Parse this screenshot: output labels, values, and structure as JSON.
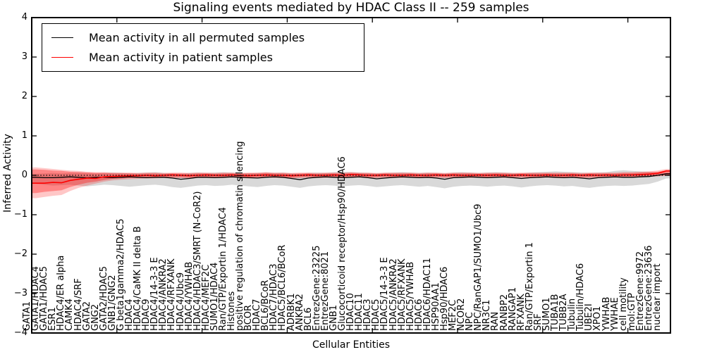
{
  "title": "Signaling events mediated by HDAC Class II -- 259 samples",
  "axes": {
    "y_label": "Inferred Activity",
    "x_label": "Cellular Entities",
    "y_ticks": [
      "4",
      "3",
      "2",
      "1",
      "0",
      "−1",
      "−2",
      "−3",
      "−4"
    ]
  },
  "chart_data": {
    "type": "line",
    "title": "Signaling events mediated by HDAC Class II -- 259 samples",
    "xlabel": "Cellular Entities",
    "ylabel": "Inferred Activity",
    "ylim": [
      -4,
      4
    ],
    "grid": false,
    "legend_position": "upper left",
    "zero_line": {
      "style": "dotted",
      "color": "#000000",
      "y": 0
    },
    "categories": [
      "GATA1",
      "GATA1/HDAC4",
      "GATA1/HDAC5",
      "ESR1",
      "HDAC4/ER alpha",
      "CAMK4",
      "HDAC4/SRF",
      "GATA2",
      "GNG2",
      "GATA2/HDAC5",
      "GNB1/GNG2",
      "G beta1gamma2/HDAC5",
      "HDAC4",
      "HDAC4/CaMK II delta B",
      "HDAC9",
      "HDAC4/14-3-3 E",
      "HDAC4/ANKRA2",
      "HDAC4/RFXANK",
      "HDAC4/Ubc9",
      "HDAC4/YWHAB",
      "HDAC4/HDAC3/SMRT (N-CoR2)",
      "HDAC4/MEF2C",
      "SUMO1/HDAC4",
      "Ran/GTP/Exportin 1/HDAC4",
      "Histones",
      "positive regulation of chromatin silencing",
      "BCOR",
      "HDAC7",
      "BCL6/BCoR",
      "HDAC7/HDAC3",
      "HDAC5/BCL6/BCoR",
      "ADRBK1",
      "ANKRA2",
      "BCL6",
      "EntrezGene:23225",
      "EntrezGene:8021",
      "GNB1",
      "Glucocorticoid receptor/Hsp90/HDAC6",
      "HDAC10",
      "HDAC11",
      "HDAC3",
      "HDAC5",
      "HDAC5/14-3-3 E",
      "HDAC5/ANKRA2",
      "HDAC5/RFXANK",
      "HDAC5/YWHAB",
      "HDAC6",
      "HDAC6/HDAC11",
      "HSP90AA1",
      "Hsp90/HDAC6",
      "MEF2C",
      "NCOR2",
      "NPC",
      "NPC/RanGAP1/SUMO1/Ubc9",
      "NR3C1",
      "RAN",
      "RANBP2",
      "RANGAP1",
      "RFXANK",
      "Ran/GTP/Exportin 1",
      "SRF",
      "SUMO1",
      "TUBA1B",
      "TUBB2A",
      "Tubulin",
      "Tubulin/HDAC6",
      "UBE2I",
      "XPO1",
      "YWHAB",
      "YWHAE",
      "cell motility",
      "mol:GTP",
      "EntrezGene:9972",
      "EntrezGene:23636",
      "nuclear import"
    ],
    "series": [
      {
        "name": "Mean activity in all permuted samples",
        "color": "#000000",
        "values": [
          -0.05,
          -0.06,
          -0.06,
          -0.05,
          -0.04,
          -0.05,
          -0.06,
          -0.05,
          -0.05,
          -0.06,
          -0.05,
          -0.04,
          -0.05,
          -0.06,
          -0.05,
          -0.05,
          -0.07,
          -0.1,
          -0.08,
          -0.05,
          -0.05,
          -0.06,
          -0.05,
          -0.04,
          -0.05,
          -0.06,
          -0.07,
          -0.05,
          -0.04,
          -0.05,
          -0.08,
          -0.11,
          -0.07,
          -0.05,
          -0.04,
          -0.05,
          -0.06,
          -0.05,
          -0.04,
          -0.06,
          -0.09,
          -0.07,
          -0.05,
          -0.04,
          -0.05,
          -0.06,
          -0.05,
          -0.07,
          -0.1,
          -0.06,
          -0.05,
          -0.04,
          -0.05,
          -0.06,
          -0.05,
          -0.04,
          -0.06,
          -0.08,
          -0.06,
          -0.05,
          -0.04,
          -0.05,
          -0.06,
          -0.05,
          -0.07,
          -0.09,
          -0.06,
          -0.05,
          -0.04,
          -0.05,
          -0.05,
          -0.04,
          -0.03,
          0.0,
          0.04
        ]
      },
      {
        "name": "Mean activity in patient samples",
        "color": "#ff0000",
        "values": [
          -0.2,
          -0.2,
          -0.18,
          -0.19,
          -0.13,
          -0.1,
          -0.07,
          -0.08,
          -0.04,
          -0.03,
          -0.02,
          -0.01,
          -0.01,
          0.0,
          -0.01,
          0.0,
          0.01,
          0.0,
          -0.01,
          0.0,
          0.01,
          0.0,
          0.0,
          0.01,
          0.0,
          -0.01,
          0.0,
          0.01,
          0.0,
          0.0,
          -0.01,
          0.0,
          0.01,
          0.0,
          0.0,
          0.01,
          0.0,
          0.02,
          0.01,
          0.0,
          0.0,
          0.01,
          0.0,
          0.0,
          0.01,
          0.0,
          0.0,
          0.01,
          0.0,
          0.01,
          0.0,
          0.0,
          0.01,
          0.0,
          0.01,
          0.0,
          0.0,
          0.01,
          0.0,
          0.0,
          0.01,
          0.0,
          0.0,
          0.01,
          0.0,
          0.01,
          0.0,
          0.01,
          0.0,
          0.01,
          0.01,
          0.02,
          0.03,
          0.05,
          0.11
        ]
      }
    ],
    "bands": [
      {
        "name": "permuted-samples-range",
        "color": "rgba(0,0,0,0.15)",
        "upper": [
          0.04,
          0.05,
          0.06,
          0.05,
          0.06,
          0.07,
          0.06,
          0.05,
          0.06,
          0.07,
          0.06,
          0.05,
          0.06,
          0.07,
          0.08,
          0.06,
          0.05,
          0.04,
          0.06,
          0.07,
          0.06,
          0.07,
          0.08,
          0.07,
          0.06,
          0.05,
          0.06,
          0.07,
          0.06,
          0.07,
          0.05,
          0.04,
          0.06,
          0.07,
          0.06,
          0.08,
          0.09,
          0.08,
          0.07,
          0.06,
          0.05,
          0.06,
          0.07,
          0.08,
          0.07,
          0.06,
          0.07,
          0.06,
          0.05,
          0.07,
          0.08,
          0.07,
          0.06,
          0.07,
          0.08,
          0.07,
          0.06,
          0.05,
          0.07,
          0.08,
          0.09,
          0.1,
          0.09,
          0.08,
          0.07,
          0.06,
          0.07,
          0.08,
          0.11,
          0.13,
          0.11,
          0.1,
          0.09,
          0.07,
          0.06
        ],
        "lower": [
          -0.22,
          -0.24,
          -0.26,
          -0.25,
          -0.24,
          -0.26,
          -0.28,
          -0.26,
          -0.24,
          -0.25,
          -0.27,
          -0.29,
          -0.27,
          -0.25,
          -0.24,
          -0.26,
          -0.3,
          -0.32,
          -0.29,
          -0.26,
          -0.25,
          -0.27,
          -0.26,
          -0.24,
          -0.26,
          -0.28,
          -0.3,
          -0.27,
          -0.25,
          -0.26,
          -0.29,
          -0.32,
          -0.28,
          -0.26,
          -0.25,
          -0.26,
          -0.28,
          -0.26,
          -0.25,
          -0.27,
          -0.3,
          -0.28,
          -0.26,
          -0.25,
          -0.27,
          -0.29,
          -0.27,
          -0.3,
          -0.33,
          -0.29,
          -0.27,
          -0.26,
          -0.27,
          -0.29,
          -0.27,
          -0.26,
          -0.28,
          -0.31,
          -0.28,
          -0.26,
          -0.25,
          -0.26,
          -0.28,
          -0.27,
          -0.3,
          -0.32,
          -0.29,
          -0.27,
          -0.26,
          -0.27,
          -0.26,
          -0.24,
          -0.22,
          -0.16,
          -0.08
        ]
      },
      {
        "name": "patient-samples-range-outer",
        "color": "rgba(255,0,0,0.22)",
        "upper": [
          0.2,
          0.18,
          0.16,
          0.14,
          0.12,
          0.11,
          0.09,
          0.08,
          0.08,
          0.07,
          0.07,
          0.07,
          0.06,
          0.07,
          0.07,
          0.06,
          0.07,
          0.07,
          0.06,
          0.07,
          0.07,
          0.06,
          0.07,
          0.07,
          0.06,
          0.07,
          0.07,
          0.08,
          0.07,
          0.07,
          0.06,
          0.07,
          0.07,
          0.06,
          0.07,
          0.07,
          0.07,
          0.08,
          0.07,
          0.07,
          0.06,
          0.07,
          0.07,
          0.07,
          0.07,
          0.06,
          0.07,
          0.07,
          0.06,
          0.07,
          0.07,
          0.07,
          0.06,
          0.07,
          0.07,
          0.07,
          0.06,
          0.07,
          0.07,
          0.07,
          0.07,
          0.07,
          0.07,
          0.07,
          0.06,
          0.07,
          0.07,
          0.07,
          0.07,
          0.08,
          0.08,
          0.09,
          0.1,
          0.12,
          0.16
        ],
        "lower": [
          -0.58,
          -0.55,
          -0.52,
          -0.5,
          -0.4,
          -0.32,
          -0.26,
          -0.21,
          -0.16,
          -0.13,
          -0.11,
          -0.1,
          -0.09,
          -0.08,
          -0.08,
          -0.07,
          -0.07,
          -0.07,
          -0.08,
          -0.07,
          -0.07,
          -0.07,
          -0.07,
          -0.06,
          -0.07,
          -0.08,
          -0.07,
          -0.06,
          -0.07,
          -0.07,
          -0.08,
          -0.07,
          -0.06,
          -0.07,
          -0.07,
          -0.06,
          -0.07,
          -0.06,
          -0.06,
          -0.07,
          -0.07,
          -0.06,
          -0.07,
          -0.07,
          -0.06,
          -0.07,
          -0.07,
          -0.06,
          -0.07,
          -0.06,
          -0.07,
          -0.07,
          -0.06,
          -0.07,
          -0.06,
          -0.07,
          -0.07,
          -0.06,
          -0.07,
          -0.07,
          -0.06,
          -0.07,
          -0.07,
          -0.06,
          -0.07,
          -0.07,
          -0.06,
          -0.06,
          -0.06,
          -0.06,
          -0.06,
          -0.05,
          -0.04,
          -0.03,
          -0.01
        ]
      },
      {
        "name": "patient-samples-range-inner",
        "color": "rgba(255,0,0,0.33)",
        "upper": [
          0.15,
          0.14,
          0.12,
          0.11,
          0.09,
          0.08,
          0.07,
          0.06,
          0.06,
          0.05,
          0.05,
          0.05,
          0.04,
          0.05,
          0.05,
          0.04,
          0.05,
          0.05,
          0.04,
          0.05,
          0.05,
          0.04,
          0.05,
          0.05,
          0.04,
          0.05,
          0.05,
          0.06,
          0.05,
          0.05,
          0.04,
          0.05,
          0.05,
          0.04,
          0.05,
          0.05,
          0.05,
          0.06,
          0.05,
          0.05,
          0.04,
          0.05,
          0.05,
          0.05,
          0.05,
          0.04,
          0.05,
          0.05,
          0.04,
          0.05,
          0.05,
          0.05,
          0.04,
          0.05,
          0.05,
          0.05,
          0.04,
          0.05,
          0.05,
          0.05,
          0.05,
          0.05,
          0.05,
          0.05,
          0.04,
          0.05,
          0.05,
          0.05,
          0.05,
          0.06,
          0.06,
          0.07,
          0.08,
          0.09,
          0.13
        ],
        "lower": [
          -0.45,
          -0.42,
          -0.4,
          -0.38,
          -0.3,
          -0.24,
          -0.19,
          -0.16,
          -0.12,
          -0.09,
          -0.08,
          -0.07,
          -0.06,
          -0.06,
          -0.06,
          -0.05,
          -0.05,
          -0.05,
          -0.06,
          -0.05,
          -0.05,
          -0.05,
          -0.05,
          -0.04,
          -0.05,
          -0.06,
          -0.05,
          -0.04,
          -0.05,
          -0.05,
          -0.06,
          -0.05,
          -0.04,
          -0.05,
          -0.05,
          -0.04,
          -0.05,
          -0.04,
          -0.04,
          -0.05,
          -0.05,
          -0.04,
          -0.05,
          -0.05,
          -0.04,
          -0.05,
          -0.05,
          -0.04,
          -0.05,
          -0.04,
          -0.05,
          -0.05,
          -0.04,
          -0.05,
          -0.04,
          -0.05,
          -0.05,
          -0.04,
          -0.05,
          -0.05,
          -0.04,
          -0.05,
          -0.05,
          -0.04,
          -0.05,
          -0.05,
          -0.04,
          -0.04,
          -0.04,
          -0.04,
          -0.04,
          -0.03,
          -0.02,
          -0.01,
          0.0
        ]
      }
    ]
  }
}
